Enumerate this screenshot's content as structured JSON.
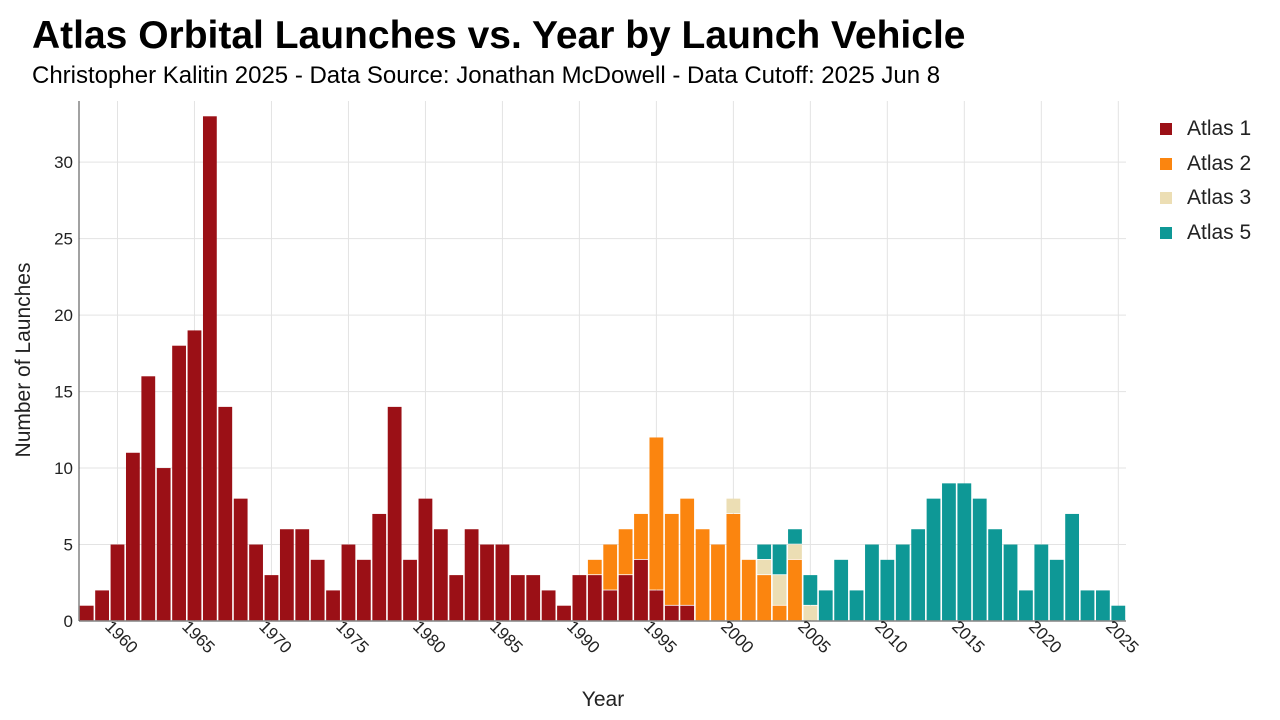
{
  "title": "Atlas Orbital Launches vs. Year by Launch Vehicle",
  "subtitle": "Christopher Kalitin 2025 - Data Source: Jonathan McDowell - Data Cutoff: 2025 Jun 8",
  "chart_data": {
    "type": "bar",
    "stacked": true,
    "xlabel": "Year",
    "ylabel": "Number of Launches",
    "x": [
      1958,
      1959,
      1960,
      1961,
      1962,
      1963,
      1964,
      1965,
      1966,
      1967,
      1968,
      1969,
      1970,
      1971,
      1972,
      1973,
      1974,
      1975,
      1976,
      1977,
      1978,
      1979,
      1980,
      1981,
      1982,
      1983,
      1984,
      1985,
      1986,
      1987,
      1988,
      1989,
      1990,
      1991,
      1992,
      1993,
      1994,
      1995,
      1996,
      1997,
      1998,
      1999,
      2000,
      2001,
      2002,
      2003,
      2004,
      2005,
      2006,
      2007,
      2008,
      2009,
      2010,
      2011,
      2012,
      2013,
      2014,
      2015,
      2016,
      2017,
      2018,
      2019,
      2020,
      2021,
      2022,
      2023,
      2024,
      2025
    ],
    "xlim": [
      1957.5,
      2025.5
    ],
    "ylim": [
      0,
      34
    ],
    "x_ticks": [
      1960,
      1965,
      1970,
      1975,
      1980,
      1985,
      1990,
      1995,
      2000,
      2005,
      2010,
      2015,
      2020,
      2025
    ],
    "y_ticks": [
      0,
      5,
      10,
      15,
      20,
      25,
      30
    ],
    "grid": true,
    "legend_position": "top-right",
    "series": [
      {
        "name": "Atlas 1",
        "color": "#9b1016",
        "values": [
          1,
          2,
          5,
          11,
          16,
          10,
          18,
          19,
          33,
          14,
          8,
          5,
          3,
          6,
          6,
          4,
          2,
          5,
          4,
          7,
          14,
          4,
          8,
          6,
          3,
          6,
          5,
          5,
          3,
          3,
          2,
          1,
          3,
          3,
          2,
          3,
          4,
          2,
          1,
          1,
          0,
          0,
          0,
          0,
          0,
          0,
          0,
          0,
          0,
          0,
          0,
          0,
          0,
          0,
          0,
          0,
          0,
          0,
          0,
          0,
          0,
          0,
          0,
          0,
          0,
          0,
          0,
          0
        ]
      },
      {
        "name": "Atlas 2",
        "color": "#fb850f",
        "values": [
          0,
          0,
          0,
          0,
          0,
          0,
          0,
          0,
          0,
          0,
          0,
          0,
          0,
          0,
          0,
          0,
          0,
          0,
          0,
          0,
          0,
          0,
          0,
          0,
          0,
          0,
          0,
          0,
          0,
          0,
          0,
          0,
          0,
          1,
          3,
          3,
          3,
          10,
          6,
          7,
          6,
          5,
          7,
          4,
          3,
          1,
          4,
          0,
          0,
          0,
          0,
          0,
          0,
          0,
          0,
          0,
          0,
          0,
          0,
          0,
          0,
          0,
          0,
          0,
          0,
          0,
          0,
          0
        ]
      },
      {
        "name": "Atlas 3",
        "color": "#ecdeb4",
        "values": [
          0,
          0,
          0,
          0,
          0,
          0,
          0,
          0,
          0,
          0,
          0,
          0,
          0,
          0,
          0,
          0,
          0,
          0,
          0,
          0,
          0,
          0,
          0,
          0,
          0,
          0,
          0,
          0,
          0,
          0,
          0,
          0,
          0,
          0,
          0,
          0,
          0,
          0,
          0,
          0,
          0,
          0,
          1,
          0,
          1,
          2,
          1,
          1,
          0,
          0,
          0,
          0,
          0,
          0,
          0,
          0,
          0,
          0,
          0,
          0,
          0,
          0,
          0,
          0,
          0,
          0,
          0,
          0
        ]
      },
      {
        "name": "Atlas 5",
        "color": "#0e9896",
        "values": [
          0,
          0,
          0,
          0,
          0,
          0,
          0,
          0,
          0,
          0,
          0,
          0,
          0,
          0,
          0,
          0,
          0,
          0,
          0,
          0,
          0,
          0,
          0,
          0,
          0,
          0,
          0,
          0,
          0,
          0,
          0,
          0,
          0,
          0,
          0,
          0,
          0,
          0,
          0,
          0,
          0,
          0,
          0,
          0,
          1,
          2,
          1,
          2,
          2,
          4,
          2,
          5,
          4,
          5,
          6,
          8,
          9,
          9,
          8,
          6,
          5,
          2,
          5,
          4,
          7,
          2,
          2,
          1
        ]
      }
    ]
  }
}
